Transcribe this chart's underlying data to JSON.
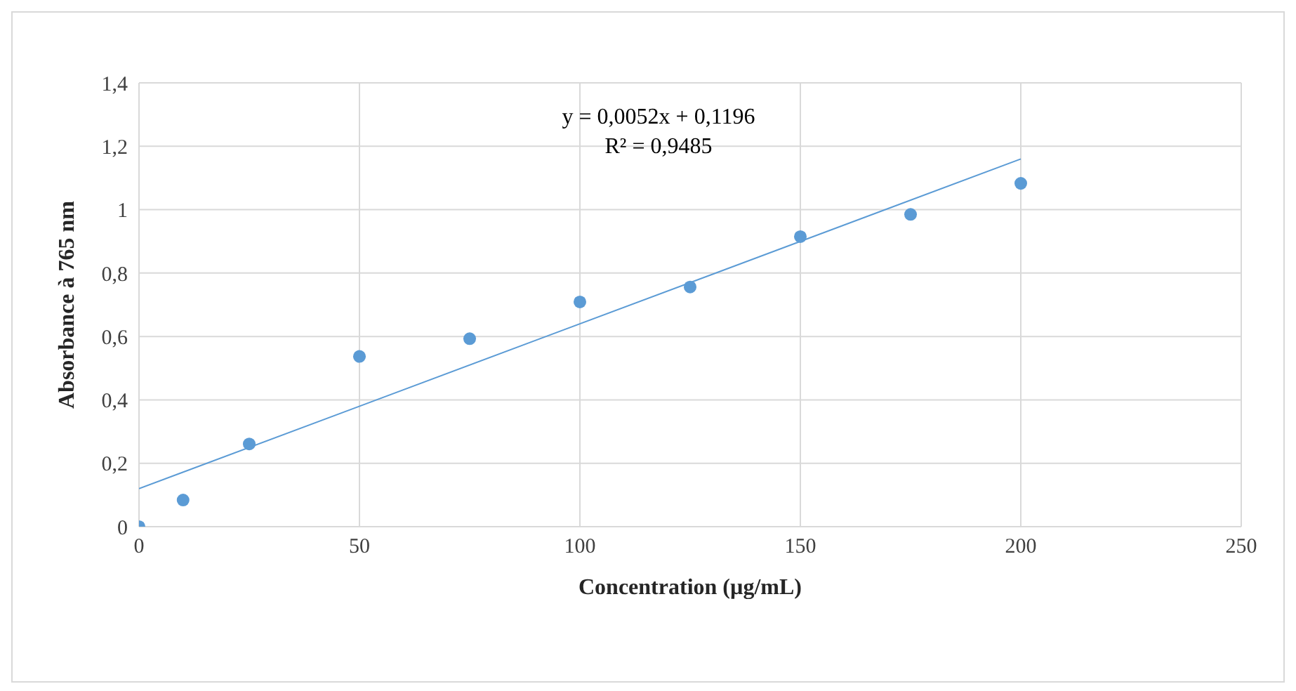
{
  "chart_data": {
    "type": "scatter",
    "xlabel": "Concentration (µg/mL)",
    "ylabel": "Absorbance à 765 nm",
    "annotations": [
      "y = 0,0052x + 0,1196",
      "R² = 0,9485"
    ],
    "series": [
      {
        "type": "scatter",
        "marker": "circle",
        "color": "#5b9bd5",
        "x": [
          0,
          10,
          25,
          50,
          75,
          100,
          125,
          150,
          175,
          200
        ],
        "values": [
          0,
          0.084,
          0.261,
          0.537,
          0.593,
          0.709,
          0.756,
          0.915,
          0.985,
          1.083
        ]
      },
      {
        "type": "line",
        "marker": "none",
        "color": "#5b9bd5",
        "x": [
          0,
          200
        ],
        "values": [
          0.12,
          1.16
        ]
      }
    ],
    "xlim": [
      0,
      250
    ],
    "xticks": [
      0,
      50,
      100,
      150,
      200,
      250
    ],
    "ylim": [
      0,
      1.4
    ],
    "yticks": [
      0,
      {
        "value": 0.2,
        "label": "0,2"
      },
      {
        "value": 0.4,
        "label": "0,4"
      },
      {
        "value": 0.6,
        "label": "0,6"
      },
      {
        "value": 0.8,
        "label": "0,8"
      },
      1,
      {
        "value": 1.2,
        "label": "1,2"
      },
      {
        "value": 1.4,
        "label": "1,4"
      }
    ],
    "grid": true,
    "legend": false,
    "line_style": "solid"
  }
}
